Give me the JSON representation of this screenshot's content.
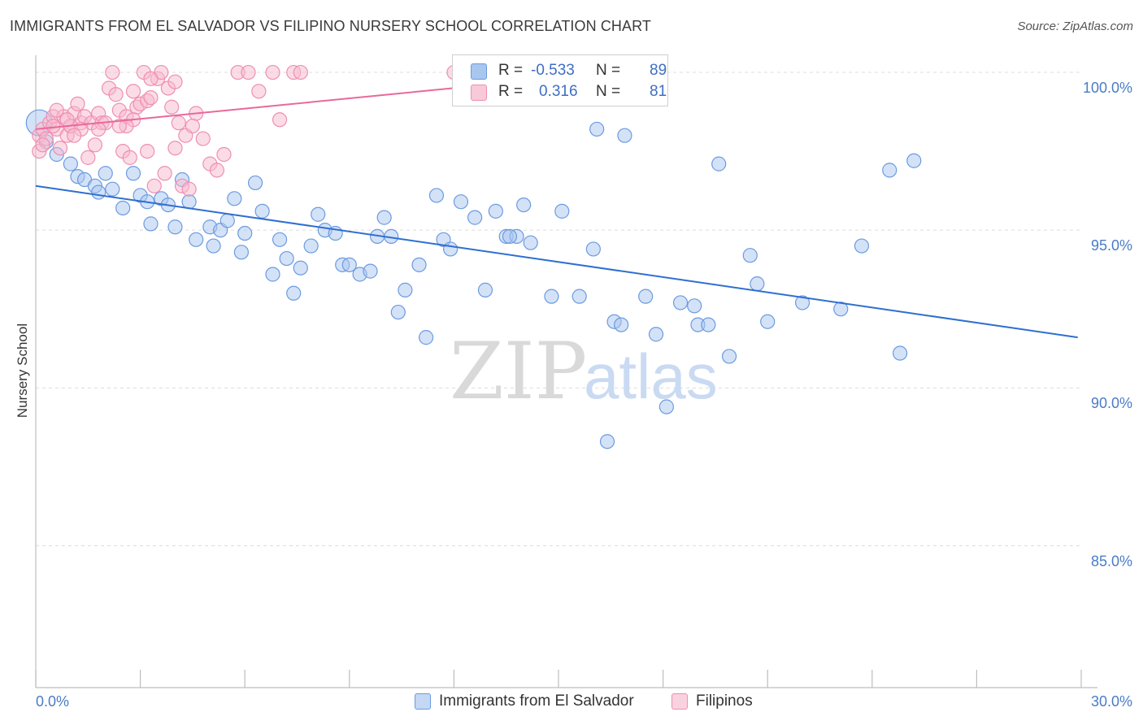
{
  "title": "IMMIGRANTS FROM EL SALVADOR VS FILIPINO NURSERY SCHOOL CORRELATION CHART",
  "source": "Source: ZipAtlas.com",
  "watermark": {
    "zip": "ZIP",
    "atlas": "atlas"
  },
  "legend": {
    "r_label": "R =",
    "n_label": "N =",
    "rows": [
      {
        "r": "-0.533",
        "n": "89"
      },
      {
        "r": "0.316",
        "n": "81"
      }
    ]
  },
  "colors": {
    "blue_fill": "#a9c6ef",
    "blue_stroke": "#6b9be0",
    "blue_line": "#2e6fd0",
    "pink_fill": "#f7b9ce",
    "pink_stroke": "#ee8fb1",
    "pink_line": "#e8699a",
    "tick_text": "#4a7cc7",
    "grid": "#dcdcdc"
  },
  "chart_data": {
    "type": "scatter",
    "title": "IMMIGRANTS FROM EL SALVADOR VS FILIPINO NURSERY SCHOOL CORRELATION CHART",
    "xlabel": "",
    "ylabel": "Nursery School",
    "xlim": [
      0,
      30
    ],
    "ylim": [
      80.5,
      100.8
    ],
    "x_ticks": [
      "0.0%",
      "30.0%"
    ],
    "y_ticks": [
      {
        "value": 100,
        "label": "100.0%"
      },
      {
        "value": 95,
        "label": "95.0%"
      },
      {
        "value": 90,
        "label": "90.0%"
      },
      {
        "value": 85,
        "label": "85.0%"
      }
    ],
    "grid": true,
    "legend_placement": "bottom",
    "series": [
      {
        "name": "Immigrants from El Salvador",
        "color": "#6b9be0",
        "trend": {
          "x": [
            0,
            29.9
          ],
          "y": [
            96.4,
            91.6
          ]
        },
        "points": [
          [
            0.1,
            98.4
          ],
          [
            0.3,
            97.8
          ],
          [
            0.6,
            97.4
          ],
          [
            1.0,
            97.1
          ],
          [
            1.2,
            96.7
          ],
          [
            1.4,
            96.6
          ],
          [
            1.7,
            96.4
          ],
          [
            1.8,
            96.2
          ],
          [
            2.0,
            96.8
          ],
          [
            2.2,
            96.3
          ],
          [
            2.5,
            95.7
          ],
          [
            2.8,
            96.8
          ],
          [
            3.0,
            96.1
          ],
          [
            3.2,
            95.9
          ],
          [
            3.3,
            95.2
          ],
          [
            3.6,
            96.0
          ],
          [
            3.8,
            95.8
          ],
          [
            4.0,
            95.1
          ],
          [
            4.2,
            96.6
          ],
          [
            4.4,
            95.9
          ],
          [
            4.6,
            94.7
          ],
          [
            5.0,
            95.1
          ],
          [
            5.1,
            94.5
          ],
          [
            5.3,
            95.0
          ],
          [
            5.5,
            95.3
          ],
          [
            5.7,
            96.0
          ],
          [
            5.9,
            94.3
          ],
          [
            6.0,
            94.9
          ],
          [
            6.3,
            96.5
          ],
          [
            6.5,
            95.6
          ],
          [
            6.8,
            93.6
          ],
          [
            7.0,
            94.7
          ],
          [
            7.2,
            94.1
          ],
          [
            7.4,
            93.0
          ],
          [
            7.6,
            93.8
          ],
          [
            7.9,
            94.5
          ],
          [
            8.1,
            95.5
          ],
          [
            8.3,
            95.0
          ],
          [
            8.6,
            94.9
          ],
          [
            8.8,
            93.9
          ],
          [
            9.0,
            93.9
          ],
          [
            9.3,
            93.6
          ],
          [
            9.6,
            93.7
          ],
          [
            9.8,
            94.8
          ],
          [
            10.0,
            95.4
          ],
          [
            10.2,
            94.8
          ],
          [
            10.4,
            92.4
          ],
          [
            10.6,
            93.1
          ],
          [
            11.0,
            93.9
          ],
          [
            11.2,
            91.6
          ],
          [
            11.5,
            96.1
          ],
          [
            11.7,
            94.7
          ],
          [
            11.9,
            94.4
          ],
          [
            12.2,
            95.9
          ],
          [
            12.6,
            95.4
          ],
          [
            12.9,
            93.1
          ],
          [
            13.2,
            95.6
          ],
          [
            13.5,
            94.8
          ],
          [
            13.8,
            94.8
          ],
          [
            14.0,
            95.8
          ],
          [
            14.2,
            94.6
          ],
          [
            14.8,
            92.9
          ],
          [
            15.1,
            95.6
          ],
          [
            15.6,
            92.9
          ],
          [
            16.0,
            94.4
          ],
          [
            16.1,
            98.2
          ],
          [
            16.4,
            88.3
          ],
          [
            16.6,
            92.1
          ],
          [
            16.8,
            92.0
          ],
          [
            16.9,
            98.0
          ],
          [
            17.5,
            92.9
          ],
          [
            17.8,
            91.7
          ],
          [
            18.1,
            89.4
          ],
          [
            18.5,
            92.7
          ],
          [
            18.9,
            92.6
          ],
          [
            19.0,
            92.0
          ],
          [
            19.3,
            92.0
          ],
          [
            19.6,
            97.1
          ],
          [
            19.9,
            91.0
          ],
          [
            20.5,
            94.2
          ],
          [
            20.7,
            93.3
          ],
          [
            21.0,
            92.1
          ],
          [
            22.0,
            92.7
          ],
          [
            23.1,
            92.5
          ],
          [
            23.7,
            94.5
          ],
          [
            24.5,
            96.9
          ],
          [
            24.8,
            91.1
          ],
          [
            25.2,
            97.2
          ],
          [
            13.6,
            94.8
          ]
        ]
      },
      {
        "name": "Filipinos",
        "color": "#ee8fb1",
        "trend": {
          "x": [
            0,
            17.5
          ],
          "y": [
            98.2,
            100.1
          ]
        },
        "points": [
          [
            0.1,
            98.0
          ],
          [
            0.1,
            97.5
          ],
          [
            0.2,
            98.2
          ],
          [
            0.3,
            97.9
          ],
          [
            0.4,
            98.4
          ],
          [
            0.5,
            98.6
          ],
          [
            0.6,
            98.2
          ],
          [
            0.7,
            97.6
          ],
          [
            0.8,
            98.6
          ],
          [
            0.9,
            98.0
          ],
          [
            1.0,
            98.3
          ],
          [
            1.1,
            98.7
          ],
          [
            1.2,
            99.0
          ],
          [
            1.3,
            98.4
          ],
          [
            1.4,
            98.6
          ],
          [
            1.5,
            97.3
          ],
          [
            1.6,
            98.4
          ],
          [
            1.7,
            97.7
          ],
          [
            1.8,
            98.7
          ],
          [
            1.9,
            98.4
          ],
          [
            2.0,
            98.4
          ],
          [
            2.1,
            99.5
          ],
          [
            2.2,
            100.0
          ],
          [
            2.3,
            99.3
          ],
          [
            2.4,
            98.8
          ],
          [
            2.5,
            97.5
          ],
          [
            2.6,
            98.6
          ],
          [
            2.7,
            97.3
          ],
          [
            2.8,
            99.4
          ],
          [
            2.9,
            98.9
          ],
          [
            3.0,
            99.0
          ],
          [
            3.1,
            100.0
          ],
          [
            3.2,
            99.1
          ],
          [
            3.3,
            99.2
          ],
          [
            3.4,
            96.4
          ],
          [
            3.5,
            99.8
          ],
          [
            3.6,
            100.0
          ],
          [
            3.7,
            96.8
          ],
          [
            3.8,
            99.5
          ],
          [
            3.9,
            98.9
          ],
          [
            4.0,
            97.6
          ],
          [
            4.1,
            98.4
          ],
          [
            4.2,
            96.4
          ],
          [
            4.3,
            98.0
          ],
          [
            4.4,
            96.3
          ],
          [
            4.6,
            98.7
          ],
          [
            4.8,
            97.9
          ],
          [
            5.0,
            97.1
          ],
          [
            5.2,
            96.9
          ],
          [
            5.4,
            97.4
          ],
          [
            5.8,
            100.0
          ],
          [
            6.1,
            100.0
          ],
          [
            6.4,
            99.4
          ],
          [
            6.8,
            100.0
          ],
          [
            7.0,
            98.5
          ],
          [
            7.4,
            100.0
          ],
          [
            7.6,
            100.0
          ],
          [
            12.0,
            100.0
          ],
          [
            12.5,
            100.0
          ],
          [
            13.0,
            100.0
          ],
          [
            13.6,
            100.0
          ],
          [
            14.2,
            100.0
          ],
          [
            14.8,
            100.0
          ],
          [
            15.2,
            100.0
          ],
          [
            16.0,
            100.0
          ],
          [
            17.0,
            100.0
          ],
          [
            1.0,
            98.3
          ],
          [
            2.8,
            98.5
          ],
          [
            0.5,
            98.3
          ],
          [
            1.3,
            98.2
          ],
          [
            3.2,
            97.5
          ],
          [
            2.6,
            98.3
          ],
          [
            0.9,
            98.5
          ],
          [
            1.8,
            98.2
          ],
          [
            3.3,
            99.8
          ],
          [
            2.4,
            98.3
          ],
          [
            1.1,
            98.0
          ],
          [
            0.2,
            97.7
          ],
          [
            0.6,
            98.8
          ],
          [
            4.5,
            98.3
          ],
          [
            4.0,
            99.7
          ]
        ]
      }
    ]
  }
}
